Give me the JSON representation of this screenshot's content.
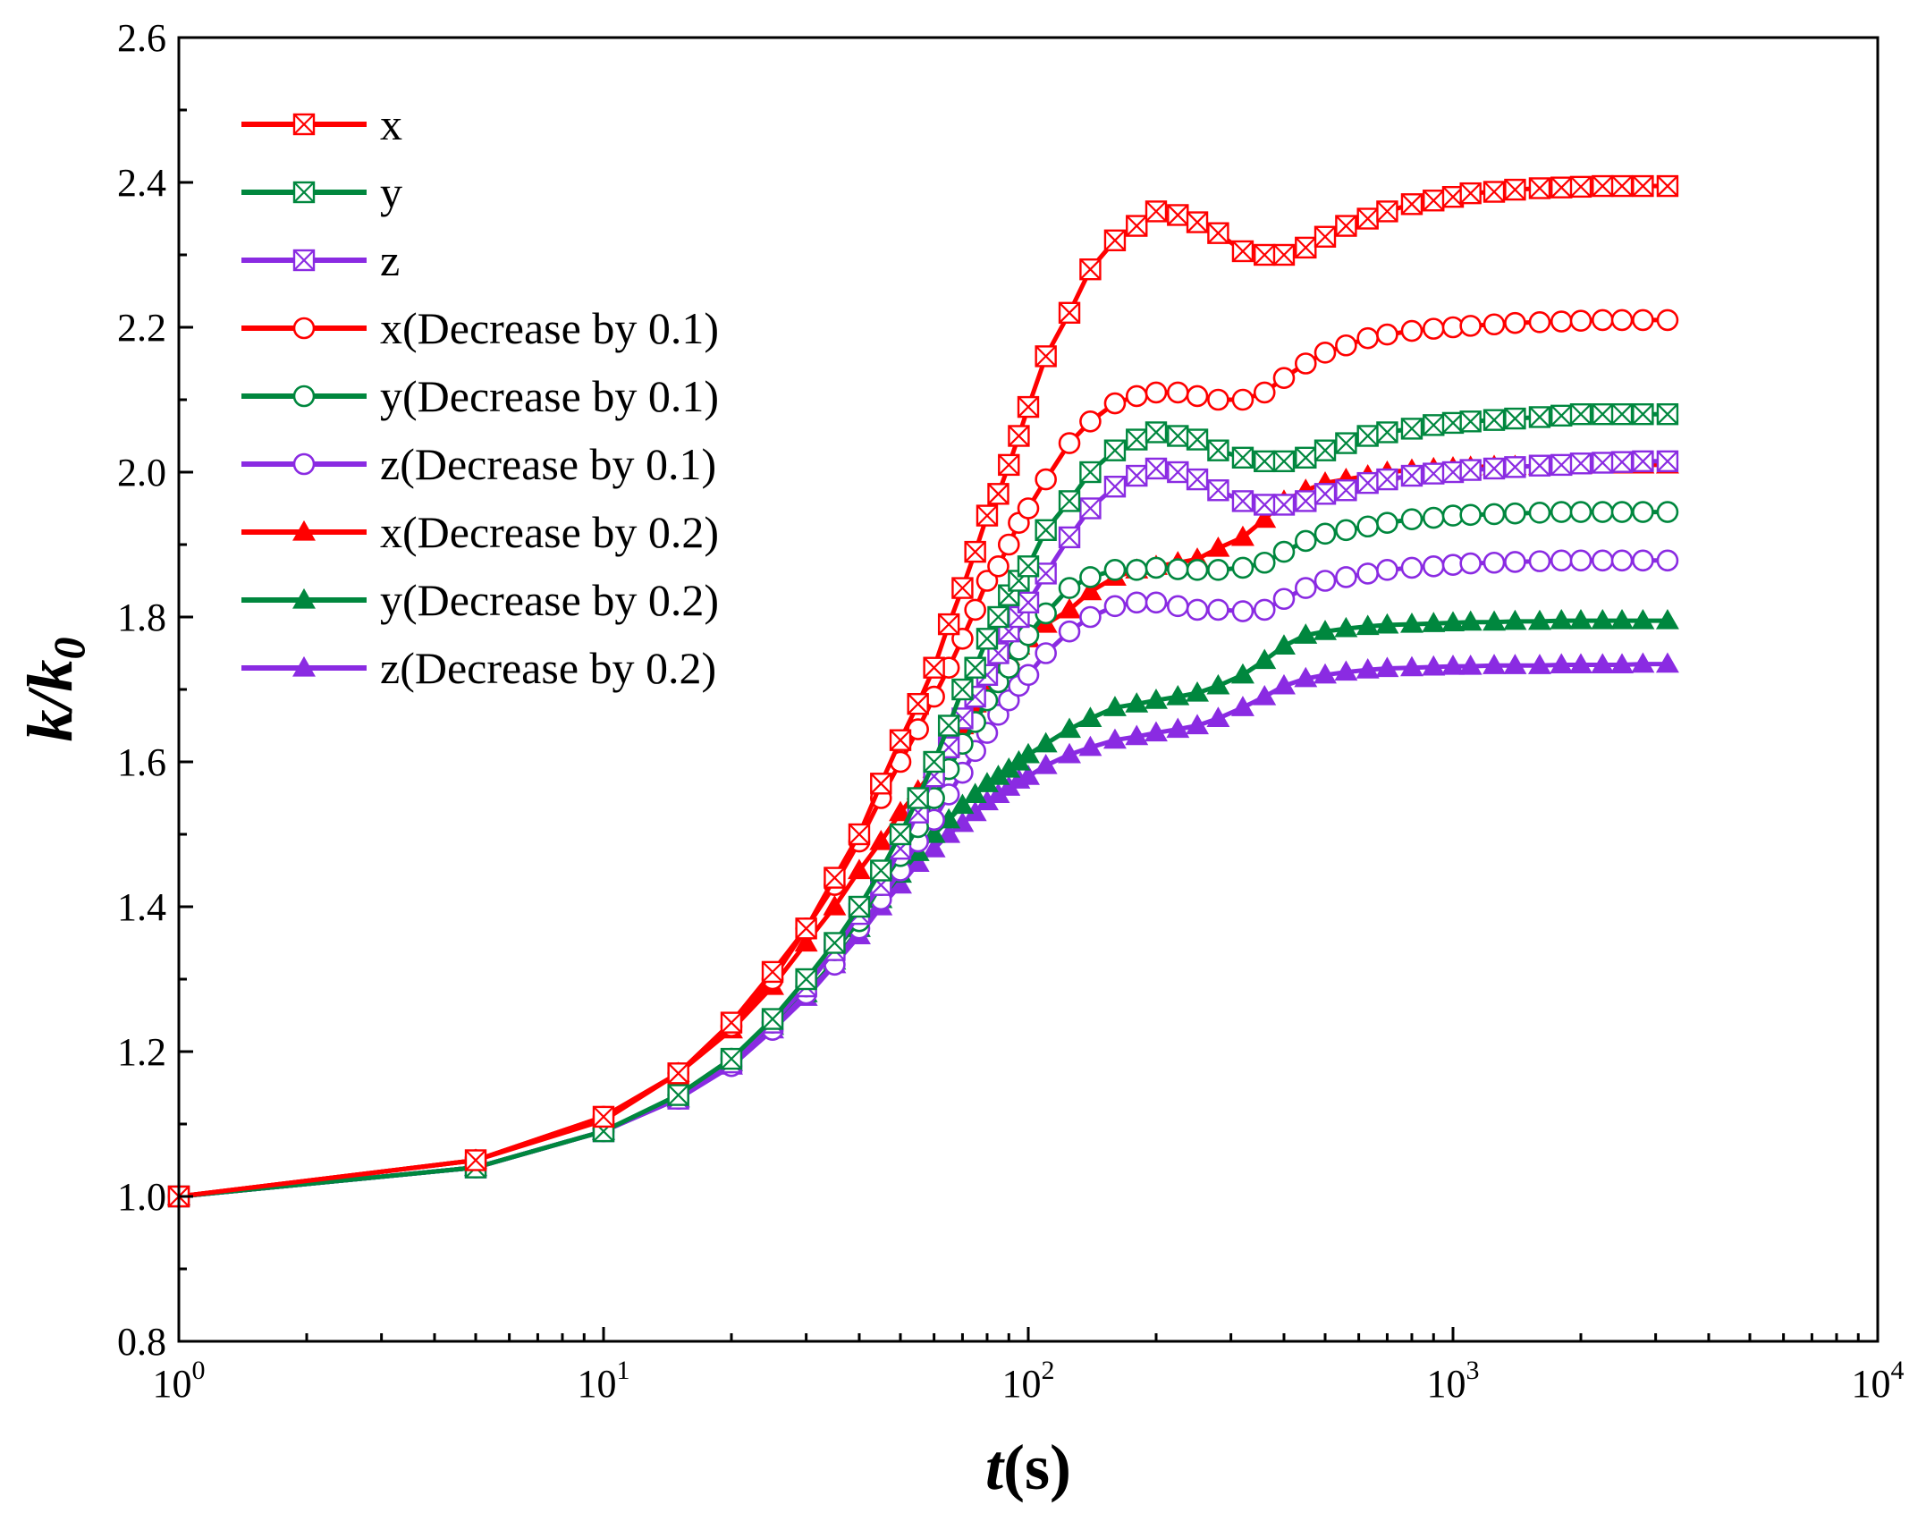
{
  "chart_data": {
    "type": "line",
    "title": "",
    "xlabel": {
      "main": "t",
      "unit": "(s)"
    },
    "ylabel": {
      "main": "k/k",
      "sub": "0"
    },
    "xscale": "log",
    "xlim": [
      1,
      10000
    ],
    "ylim": [
      0.8,
      2.6
    ],
    "xticks": [
      {
        "value": 1,
        "base": "10",
        "exp": "0"
      },
      {
        "value": 10,
        "base": "10",
        "exp": "1"
      },
      {
        "value": 100,
        "base": "10",
        "exp": "2"
      },
      {
        "value": 1000,
        "base": "10",
        "exp": "3"
      },
      {
        "value": 10000,
        "base": "10",
        "exp": "4"
      }
    ],
    "yticks": [
      "0.8",
      "1.0",
      "1.2",
      "1.4",
      "1.6",
      "1.8",
      "2.0",
      "2.2",
      "2.4",
      "2.6"
    ],
    "grid": false,
    "legend_position": "top-left",
    "series": [
      {
        "name": "x",
        "color": "#ff0000",
        "marker": "square-x",
        "x": [
          1,
          5,
          10,
          15,
          20,
          25,
          30,
          35,
          40,
          45,
          50,
          55,
          60,
          65,
          70,
          75,
          80,
          85,
          90,
          95,
          100,
          110,
          125,
          140,
          160,
          180,
          200,
          225,
          250,
          280,
          320,
          360,
          400,
          450,
          500,
          560,
          630,
          700,
          800,
          900,
          1000,
          1100,
          1250,
          1400,
          1600,
          1800,
          2000,
          2250,
          2500,
          2800,
          3200
        ],
        "y": [
          1.0,
          1.05,
          1.11,
          1.17,
          1.24,
          1.31,
          1.37,
          1.44,
          1.5,
          1.57,
          1.63,
          1.68,
          1.73,
          1.79,
          1.84,
          1.89,
          1.94,
          1.97,
          2.01,
          2.05,
          2.09,
          2.16,
          2.22,
          2.28,
          2.32,
          2.34,
          2.36,
          2.355,
          2.345,
          2.33,
          2.305,
          2.3,
          2.3,
          2.31,
          2.325,
          2.34,
          2.35,
          2.36,
          2.37,
          2.375,
          2.38,
          2.385,
          2.387,
          2.39,
          2.392,
          2.393,
          2.394,
          2.395,
          2.395,
          2.395,
          2.395
        ]
      },
      {
        "name": "y",
        "color": "#00873e",
        "marker": "square-x",
        "x": [
          1,
          5,
          10,
          15,
          20,
          25,
          30,
          35,
          40,
          45,
          50,
          55,
          60,
          65,
          70,
          75,
          80,
          85,
          90,
          95,
          100,
          110,
          125,
          140,
          160,
          180,
          200,
          225,
          250,
          280,
          320,
          360,
          400,
          450,
          500,
          560,
          630,
          700,
          800,
          900,
          1000,
          1100,
          1250,
          1400,
          1600,
          1800,
          2000,
          2250,
          2500,
          2800,
          3200
        ],
        "y": [
          1.0,
          1.04,
          1.09,
          1.14,
          1.19,
          1.245,
          1.3,
          1.35,
          1.4,
          1.45,
          1.5,
          1.55,
          1.6,
          1.65,
          1.7,
          1.73,
          1.77,
          1.8,
          1.83,
          1.85,
          1.87,
          1.92,
          1.96,
          2.0,
          2.03,
          2.045,
          2.055,
          2.05,
          2.045,
          2.03,
          2.02,
          2.015,
          2.015,
          2.02,
          2.03,
          2.04,
          2.05,
          2.055,
          2.06,
          2.065,
          2.068,
          2.07,
          2.072,
          2.074,
          2.076,
          2.078,
          2.08,
          2.08,
          2.08,
          2.08,
          2.08
        ]
      },
      {
        "name": "z",
        "color": "#8a2be2",
        "marker": "square-x",
        "x": [
          1,
          5,
          10,
          15,
          20,
          25,
          30,
          35,
          40,
          45,
          50,
          55,
          60,
          65,
          70,
          75,
          80,
          85,
          90,
          95,
          100,
          110,
          125,
          140,
          160,
          180,
          200,
          225,
          250,
          280,
          320,
          360,
          400,
          450,
          500,
          560,
          630,
          700,
          800,
          900,
          1000,
          1100,
          1250,
          1400,
          1600,
          1800,
          2000,
          2250,
          2500,
          2800,
          3200
        ],
        "y": [
          1.0,
          1.04,
          1.09,
          1.135,
          1.185,
          1.24,
          1.29,
          1.34,
          1.39,
          1.43,
          1.48,
          1.53,
          1.58,
          1.62,
          1.66,
          1.69,
          1.72,
          1.75,
          1.78,
          1.8,
          1.82,
          1.86,
          1.91,
          1.95,
          1.98,
          1.995,
          2.005,
          2.0,
          1.99,
          1.975,
          1.96,
          1.955,
          1.955,
          1.96,
          1.97,
          1.975,
          1.985,
          1.99,
          1.995,
          1.998,
          2.0,
          2.003,
          2.005,
          2.007,
          2.009,
          2.01,
          2.012,
          2.013,
          2.014,
          2.015,
          2.015
        ]
      },
      {
        "name": "x(Decrease by 0.1)",
        "color": "#ff0000",
        "marker": "circle",
        "x": [
          1,
          5,
          10,
          15,
          20,
          25,
          30,
          35,
          40,
          45,
          50,
          55,
          60,
          65,
          70,
          75,
          80,
          85,
          90,
          95,
          100,
          110,
          125,
          140,
          160,
          180,
          200,
          225,
          250,
          280,
          320,
          360,
          400,
          450,
          500,
          560,
          630,
          700,
          800,
          900,
          1000,
          1100,
          1250,
          1400,
          1600,
          1800,
          2000,
          2250,
          2500,
          2800,
          3200
        ],
        "y": [
          1.0,
          1.05,
          1.11,
          1.17,
          1.235,
          1.3,
          1.37,
          1.43,
          1.49,
          1.55,
          1.6,
          1.645,
          1.69,
          1.73,
          1.77,
          1.81,
          1.85,
          1.87,
          1.9,
          1.93,
          1.95,
          1.99,
          2.04,
          2.07,
          2.095,
          2.105,
          2.11,
          2.11,
          2.105,
          2.1,
          2.1,
          2.11,
          2.13,
          2.15,
          2.165,
          2.175,
          2.185,
          2.19,
          2.195,
          2.198,
          2.2,
          2.202,
          2.204,
          2.206,
          2.207,
          2.208,
          2.209,
          2.21,
          2.21,
          2.21,
          2.21
        ]
      },
      {
        "name": "y(Decrease by 0.1)",
        "color": "#00873e",
        "marker": "circle",
        "x": [
          1,
          5,
          10,
          15,
          20,
          25,
          30,
          35,
          40,
          45,
          50,
          55,
          60,
          65,
          70,
          75,
          80,
          85,
          90,
          95,
          100,
          110,
          125,
          140,
          160,
          180,
          200,
          225,
          250,
          280,
          320,
          360,
          400,
          450,
          500,
          560,
          630,
          700,
          800,
          900,
          1000,
          1100,
          1250,
          1400,
          1600,
          1800,
          2000,
          2250,
          2500,
          2800,
          3200
        ],
        "y": [
          1.0,
          1.04,
          1.09,
          1.14,
          1.19,
          1.24,
          1.29,
          1.34,
          1.38,
          1.43,
          1.47,
          1.51,
          1.55,
          1.59,
          1.625,
          1.655,
          1.685,
          1.71,
          1.73,
          1.755,
          1.775,
          1.805,
          1.84,
          1.855,
          1.865,
          1.865,
          1.868,
          1.866,
          1.865,
          1.865,
          1.868,
          1.875,
          1.89,
          1.905,
          1.915,
          1.92,
          1.925,
          1.93,
          1.935,
          1.937,
          1.94,
          1.941,
          1.942,
          1.943,
          1.944,
          1.945,
          1.945,
          1.945,
          1.945,
          1.945,
          1.945
        ]
      },
      {
        "name": "z(Decrease by 0.1)",
        "color": "#8a2be2",
        "marker": "circle",
        "x": [
          1,
          5,
          10,
          15,
          20,
          25,
          30,
          35,
          40,
          45,
          50,
          55,
          60,
          65,
          70,
          75,
          80,
          85,
          90,
          95,
          100,
          110,
          125,
          140,
          160,
          180,
          200,
          225,
          250,
          280,
          320,
          360,
          400,
          450,
          500,
          560,
          630,
          700,
          800,
          900,
          1000,
          1100,
          1250,
          1400,
          1600,
          1800,
          2000,
          2250,
          2500,
          2800,
          3200
        ],
        "y": [
          1.0,
          1.04,
          1.09,
          1.135,
          1.18,
          1.23,
          1.28,
          1.32,
          1.37,
          1.41,
          1.45,
          1.49,
          1.52,
          1.555,
          1.585,
          1.615,
          1.64,
          1.665,
          1.685,
          1.705,
          1.72,
          1.75,
          1.78,
          1.8,
          1.815,
          1.82,
          1.82,
          1.815,
          1.81,
          1.81,
          1.808,
          1.81,
          1.825,
          1.84,
          1.85,
          1.855,
          1.86,
          1.865,
          1.868,
          1.87,
          1.872,
          1.874,
          1.875,
          1.876,
          1.877,
          1.878,
          1.878,
          1.878,
          1.878,
          1.878,
          1.878
        ]
      },
      {
        "name": "x(Decrease by 0.2)",
        "color": "#ff0000",
        "marker": "triangle",
        "x": [
          1,
          5,
          10,
          15,
          20,
          25,
          30,
          35,
          40,
          45,
          50,
          55,
          60,
          65,
          70,
          75,
          80,
          85,
          90,
          95,
          100,
          110,
          125,
          140,
          160,
          180,
          200,
          225,
          250,
          280,
          320,
          360,
          400,
          450,
          500,
          560,
          630,
          700,
          800,
          900,
          1000,
          1100,
          1250,
          1400,
          1600,
          1800,
          2000,
          2250,
          2500,
          2800,
          3200
        ],
        "y": [
          1.0,
          1.05,
          1.105,
          1.17,
          1.23,
          1.29,
          1.35,
          1.4,
          1.45,
          1.49,
          1.53,
          1.56,
          1.59,
          1.62,
          1.65,
          1.68,
          1.71,
          1.73,
          1.745,
          1.76,
          1.77,
          1.79,
          1.81,
          1.835,
          1.855,
          1.865,
          1.87,
          1.875,
          1.88,
          1.895,
          1.91,
          1.935,
          1.96,
          1.975,
          1.985,
          1.99,
          1.995,
          2.0,
          2.003,
          2.005,
          2.006,
          2.007,
          2.008,
          2.008,
          2.008,
          2.009,
          2.009,
          2.01,
          2.01,
          2.01,
          2.01
        ]
      },
      {
        "name": "y(Decrease by 0.2)",
        "color": "#00873e",
        "marker": "triangle",
        "x": [
          1,
          5,
          10,
          15,
          20,
          25,
          30,
          35,
          40,
          45,
          50,
          55,
          60,
          65,
          70,
          75,
          80,
          85,
          90,
          95,
          100,
          110,
          125,
          140,
          160,
          180,
          200,
          225,
          250,
          280,
          320,
          360,
          400,
          450,
          500,
          560,
          630,
          700,
          800,
          900,
          1000,
          1100,
          1250,
          1400,
          1600,
          1800,
          2000,
          2250,
          2500,
          2800,
          3200
        ],
        "y": [
          1.0,
          1.04,
          1.09,
          1.135,
          1.185,
          1.235,
          1.28,
          1.325,
          1.37,
          1.41,
          1.445,
          1.475,
          1.5,
          1.52,
          1.54,
          1.555,
          1.57,
          1.58,
          1.59,
          1.6,
          1.61,
          1.625,
          1.645,
          1.66,
          1.675,
          1.68,
          1.685,
          1.69,
          1.695,
          1.705,
          1.72,
          1.74,
          1.76,
          1.775,
          1.78,
          1.784,
          1.787,
          1.789,
          1.79,
          1.791,
          1.792,
          1.793,
          1.793,
          1.794,
          1.794,
          1.795,
          1.795,
          1.795,
          1.795,
          1.795,
          1.795
        ]
      },
      {
        "name": "z(Decrease by 0.2)",
        "color": "#8a2be2",
        "marker": "triangle",
        "x": [
          1,
          5,
          10,
          15,
          20,
          25,
          30,
          35,
          40,
          45,
          50,
          55,
          60,
          65,
          70,
          75,
          80,
          85,
          90,
          95,
          100,
          110,
          125,
          140,
          160,
          180,
          200,
          225,
          250,
          280,
          320,
          360,
          400,
          450,
          500,
          560,
          630,
          700,
          800,
          900,
          1000,
          1100,
          1250,
          1400,
          1600,
          1800,
          2000,
          2250,
          2500,
          2800,
          3200
        ],
        "y": [
          1.0,
          1.04,
          1.09,
          1.135,
          1.18,
          1.23,
          1.275,
          1.32,
          1.36,
          1.4,
          1.43,
          1.46,
          1.48,
          1.5,
          1.515,
          1.53,
          1.545,
          1.555,
          1.565,
          1.575,
          1.58,
          1.595,
          1.61,
          1.62,
          1.63,
          1.635,
          1.64,
          1.645,
          1.65,
          1.66,
          1.675,
          1.69,
          1.705,
          1.715,
          1.72,
          1.724,
          1.727,
          1.729,
          1.73,
          1.731,
          1.732,
          1.732,
          1.733,
          1.733,
          1.733,
          1.734,
          1.734,
          1.734,
          1.734,
          1.735,
          1.735
        ]
      }
    ]
  }
}
